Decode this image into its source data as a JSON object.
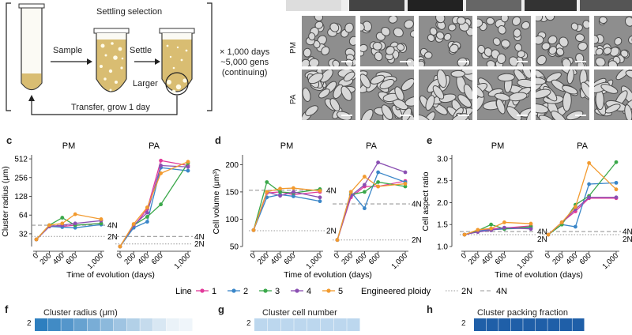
{
  "schematic": {
    "title": "Settling selection",
    "sample_label": "Sample",
    "settle_label": "Settle",
    "larger_label": "Larger",
    "transfer_label": "Transfer, grow 1 day",
    "duration_lines": [
      "× 1,000 days",
      "~5,000 gens",
      "(continuing)"
    ]
  },
  "micrographs": {
    "rows": [
      "PM",
      "PA"
    ]
  },
  "legend": {
    "line_title": "Line",
    "lines": [
      {
        "name": "1",
        "color": "#e23a9a"
      },
      {
        "name": "2",
        "color": "#3a86c8"
      },
      {
        "name": "3",
        "color": "#3aa84a"
      },
      {
        "name": "4",
        "color": "#8a4fb2"
      },
      {
        "name": "5",
        "color": "#f29a2e"
      }
    ],
    "ploidy_title": "Engineered ploidy",
    "ploidy_2n": "2N",
    "ploidy_4n": "4N"
  },
  "bottom_panels": [
    {
      "letter": "f",
      "title": "Cluster radius (μm)",
      "row_label": "2",
      "heat_color": "#2e7fbf"
    },
    {
      "letter": "g",
      "title": "Cluster cell number",
      "row_label": "2",
      "heat_color": "#bcd7ee"
    },
    {
      "letter": "h",
      "title": "Cluster packing fraction",
      "row_label": "2",
      "heat_color": "#1f5fa8"
    }
  ],
  "chart_data": [
    {
      "panel": "c",
      "type": "line",
      "ylabel": "Cluster radius (μm)",
      "xlabel": "Time of evolution (days)",
      "yscale": "log2",
      "ylim": [
        20,
        560
      ],
      "yticks": [
        32,
        64,
        128,
        256,
        512
      ],
      "ref_lines": {
        "2N": 22,
        "4N": 29
      },
      "ref_text_4n": "4N",
      "ref_text_2n": "2N",
      "x": [
        0,
        200,
        400,
        600,
        1000
      ],
      "x_tick_labels": [
        "0",
        "200",
        "400",
        "600",
        "1,000"
      ],
      "groups": [
        {
          "name": "PM",
          "ref_lines": {
            "4N": 44,
            "2N": 29
          },
          "series": [
            {
              "line": "1",
              "values": [
                26,
                42,
                42,
                44,
                47
              ]
            },
            {
              "line": "2",
              "values": [
                26,
                42,
                41,
                40,
                45
              ]
            },
            {
              "line": "3",
              "values": [
                26,
                44,
                58,
                44,
                47
              ]
            },
            {
              "line": "4",
              "values": [
                26,
                42,
                44,
                47,
                52
              ]
            },
            {
              "line": "5",
              "values": [
                26,
                44,
                47,
                66,
                55
              ]
            }
          ]
        },
        {
          "name": "PA",
          "ref_lines": {
            "4N": 29,
            "2N": 22
          },
          "series": [
            {
              "line": "1",
              "values": [
                20,
                42,
                80,
                480,
                400
              ]
            },
            {
              "line": "2",
              "values": [
                20,
                40,
                50,
                370,
                330
              ]
            },
            {
              "line": "3",
              "values": [
                20,
                44,
                60,
                95,
                440
              ]
            },
            {
              "line": "4",
              "values": [
                20,
                44,
                70,
                400,
                380
              ]
            },
            {
              "line": "5",
              "values": [
                20,
                46,
                85,
                300,
                460
              ]
            }
          ]
        }
      ]
    },
    {
      "panel": "d",
      "type": "line",
      "ylabel": "Cell volume (μm³)",
      "xlabel": "Time of evolution (days)",
      "yscale": "linear",
      "ylim": [
        50,
        215
      ],
      "yticks": [
        50,
        100,
        150,
        200
      ],
      "ref_text_4n": "4N",
      "ref_text_2n": "2N",
      "x": [
        0,
        200,
        400,
        600,
        1000
      ],
      "x_tick_labels": [
        "0",
        "200",
        "400",
        "600",
        "1,000"
      ],
      "groups": [
        {
          "name": "PM",
          "ref_lines": {
            "4N": 153,
            "2N": 79
          },
          "series": [
            {
              "line": "1",
              "values": [
                80,
                148,
                150,
                145,
                150
              ]
            },
            {
              "line": "2",
              "values": [
                80,
                140,
                145,
                142,
                133
              ]
            },
            {
              "line": "3",
              "values": [
                80,
                168,
                150,
                148,
                155
              ]
            },
            {
              "line": "4",
              "values": [
                80,
                150,
                143,
                150,
                140
              ]
            },
            {
              "line": "5",
              "values": [
                80,
                150,
                156,
                157,
                152
              ]
            }
          ]
        },
        {
          "name": "PA",
          "ref_lines": {
            "4N": 128,
            "2N": 62
          },
          "series": [
            {
              "line": "1",
              "values": [
                62,
                140,
                160,
                160,
                170
              ]
            },
            {
              "line": "2",
              "values": [
                62,
                150,
                120,
                186,
                168
              ]
            },
            {
              "line": "3",
              "values": [
                62,
                145,
                150,
                168,
                160
              ]
            },
            {
              "line": "4",
              "values": [
                62,
                143,
                163,
                204,
                186
              ]
            },
            {
              "line": "5",
              "values": [
                62,
                150,
                178,
                160,
                165
              ]
            }
          ]
        }
      ]
    },
    {
      "panel": "e",
      "type": "line",
      "ylabel": "Cell aspect ratio",
      "xlabel": "Time of evolution (days)",
      "yscale": "linear",
      "ylim": [
        1.0,
        3.05
      ],
      "yticks": [
        1.0,
        1.5,
        2.0,
        2.5,
        3.0
      ],
      "ref_text_4n": "4N",
      "ref_text_2n": "2N",
      "x": [
        0,
        200,
        400,
        600,
        1000
      ],
      "x_tick_labels": [
        "0",
        "200",
        "400",
        "600",
        "1,000"
      ],
      "groups": [
        {
          "name": "PM",
          "ref_lines": {
            "4N": 1.34,
            "2N": 1.27
          },
          "series": [
            {
              "line": "1",
              "values": [
                1.27,
                1.35,
                1.4,
                1.42,
                1.47
              ]
            },
            {
              "line": "2",
              "values": [
                1.27,
                1.35,
                1.38,
                1.4,
                1.42
              ]
            },
            {
              "line": "3",
              "values": [
                1.27,
                1.36,
                1.5,
                1.4,
                1.45
              ]
            },
            {
              "line": "4",
              "values": [
                1.27,
                1.33,
                1.37,
                1.43,
                1.4
              ]
            },
            {
              "line": "5",
              "values": [
                1.27,
                1.38,
                1.41,
                1.55,
                1.52
              ]
            }
          ]
        },
        {
          "name": "PA",
          "ref_lines": {
            "4N": 1.34,
            "2N": 1.27
          },
          "series": [
            {
              "line": "1",
              "values": [
                1.27,
                1.55,
                1.8,
                2.1,
                2.1
              ]
            },
            {
              "line": "2",
              "values": [
                1.27,
                1.5,
                1.45,
                2.42,
                2.45
              ]
            },
            {
              "line": "3",
              "values": [
                1.27,
                1.5,
                1.95,
                2.15,
                2.92
              ]
            },
            {
              "line": "4",
              "values": [
                1.27,
                1.55,
                1.85,
                2.12,
                2.12
              ]
            },
            {
              "line": "5",
              "values": [
                1.27,
                1.55,
                1.9,
                2.9,
                2.3
              ]
            }
          ]
        }
      ]
    }
  ]
}
